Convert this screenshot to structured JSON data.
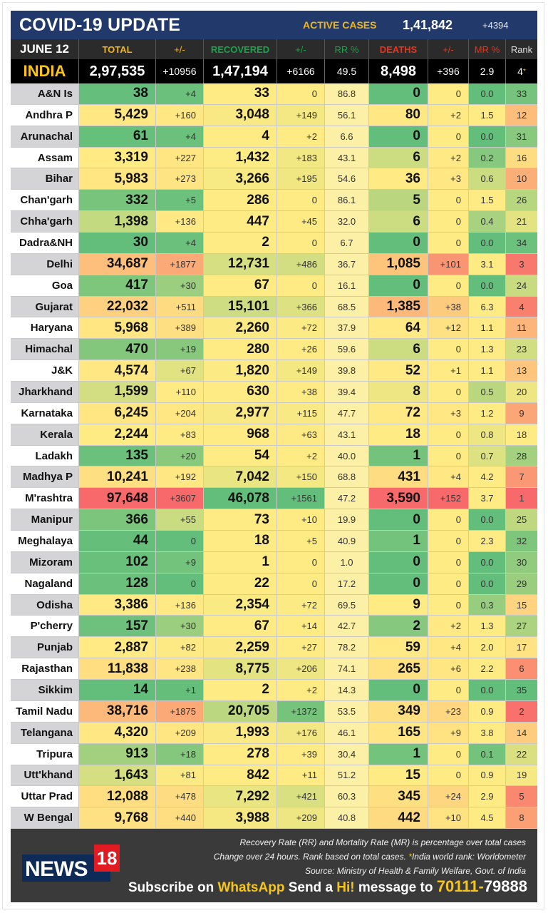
{
  "header": {
    "title": "COVID-19 UPDATE",
    "active_cases_label": "ACTIVE CASES",
    "active_cases": "1,41,842",
    "active_delta": "+4394"
  },
  "columns": {
    "date": "JUNE 12",
    "total": "TOTAL",
    "total_delta": "+/-",
    "recovered": "RECOVERED",
    "rec_delta": "+/-",
    "rr": "RR %",
    "deaths": "DEATHS",
    "d_delta": "+/-",
    "mr": "MR %",
    "rank": "Rank"
  },
  "column_colors": {
    "total": "#f2b51d",
    "recovered": "#1aa34a",
    "deaths": "#e8341c",
    "rank": "#e0e0e0"
  },
  "india": {
    "name": "INDIA",
    "total": "2,97,535",
    "total_delta": "+10956",
    "recovered": "1,47,194",
    "rec_delta": "+6166",
    "rr": "49.5",
    "deaths": "8,498",
    "d_delta": "+396",
    "mr": "2.9",
    "rank": "4",
    "rank_mark": "*"
  },
  "scale_colors": {
    "green": "#63be7b",
    "yellow": "#ffeb84",
    "red": "#f8696b",
    "pale": "#fcefa6"
  },
  "rows": [
    [
      "A&N Is",
      "38",
      "+4",
      "33",
      "0",
      "86.8",
      "0",
      "0",
      "0.0",
      "33"
    ],
    [
      "Andhra P",
      "5,429",
      "+160",
      "3,048",
      "+149",
      "56.1",
      "80",
      "+2",
      "1.5",
      "12"
    ],
    [
      "Arunachal",
      "61",
      "+4",
      "4",
      "+2",
      "6.6",
      "0",
      "0",
      "0.0",
      "31"
    ],
    [
      "Assam",
      "3,319",
      "+227",
      "1,432",
      "+183",
      "43.1",
      "6",
      "+2",
      "0.2",
      "16"
    ],
    [
      "Bihar",
      "5,983",
      "+273",
      "3,266",
      "+195",
      "54.6",
      "36",
      "+3",
      "0.6",
      "10"
    ],
    [
      "Chan'garh",
      "332",
      "+5",
      "286",
      "0",
      "86.1",
      "5",
      "0",
      "1.5",
      "26"
    ],
    [
      "Chha'garh",
      "1,398",
      "+136",
      "447",
      "+45",
      "32.0",
      "6",
      "0",
      "0.4",
      "21"
    ],
    [
      "Dadra&NH",
      "30",
      "+4",
      "2",
      "0",
      "6.7",
      "0",
      "0",
      "0.0",
      "34"
    ],
    [
      "Delhi",
      "34,687",
      "+1877",
      "12,731",
      "+486",
      "36.7",
      "1,085",
      "+101",
      "3.1",
      "3"
    ],
    [
      "Goa",
      "417",
      "+30",
      "67",
      "0",
      "16.1",
      "0",
      "0",
      "0.0",
      "24"
    ],
    [
      "Gujarat",
      "22,032",
      "+511",
      "15,101",
      "+366",
      "68.5",
      "1,385",
      "+38",
      "6.3",
      "4"
    ],
    [
      "Haryana",
      "5,968",
      "+389",
      "2,260",
      "+72",
      "37.9",
      "64",
      "+12",
      "1.1",
      "11"
    ],
    [
      "Himachal",
      "470",
      "+19",
      "280",
      "+26",
      "59.6",
      "6",
      "0",
      "1.3",
      "23"
    ],
    [
      "J&K",
      "4,574",
      "+67",
      "1,820",
      "+149",
      "39.8",
      "52",
      "+1",
      "1.1",
      "13"
    ],
    [
      "Jharkhand",
      "1,599",
      "+110",
      "630",
      "+38",
      "39.4",
      "8",
      "0",
      "0.5",
      "20"
    ],
    [
      "Karnataka",
      "6,245",
      "+204",
      "2,977",
      "+115",
      "47.7",
      "72",
      "+3",
      "1.2",
      "9"
    ],
    [
      "Kerala",
      "2,244",
      "+83",
      "968",
      "+63",
      "43.1",
      "18",
      "0",
      "0.8",
      "18"
    ],
    [
      "Ladakh",
      "135",
      "+20",
      "54",
      "+2",
      "40.0",
      "1",
      "0",
      "0.7",
      "28"
    ],
    [
      "Madhya P",
      "10,241",
      "+192",
      "7,042",
      "+150",
      "68.8",
      "431",
      "+4",
      "4.2",
      "7"
    ],
    [
      "M'rashtra",
      "97,648",
      "+3607",
      "46,078",
      "+1561",
      "47.2",
      "3,590",
      "+152",
      "3.7",
      "1"
    ],
    [
      "Manipur",
      "366",
      "+55",
      "73",
      "+10",
      "19.9",
      "0",
      "0",
      "0.0",
      "25"
    ],
    [
      "Meghalaya",
      "44",
      "0",
      "18",
      "+5",
      "40.9",
      "1",
      "0",
      "2.3",
      "32"
    ],
    [
      "Mizoram",
      "102",
      "+9",
      "1",
      "0",
      "1.0",
      "0",
      "0",
      "0.0",
      "30"
    ],
    [
      "Nagaland",
      "128",
      "0",
      "22",
      "0",
      "17.2",
      "0",
      "0",
      "0.0",
      "29"
    ],
    [
      "Odisha",
      "3,386",
      "+136",
      "2,354",
      "+72",
      "69.5",
      "9",
      "0",
      "0.3",
      "15"
    ],
    [
      "P'cherry",
      "157",
      "+30",
      "67",
      "+14",
      "42.7",
      "2",
      "+2",
      "1.3",
      "27"
    ],
    [
      "Punjab",
      "2,887",
      "+82",
      "2,259",
      "+27",
      "78.2",
      "59",
      "+4",
      "2.0",
      "17"
    ],
    [
      "Rajasthan",
      "11,838",
      "+238",
      "8,775",
      "+206",
      "74.1",
      "265",
      "+6",
      "2.2",
      "6"
    ],
    [
      "Sikkim",
      "14",
      "+1",
      "2",
      "+2",
      "14.3",
      "0",
      "0",
      "0.0",
      "35"
    ],
    [
      "Tamil Nadu",
      "38,716",
      "+1875",
      "20,705",
      "+1372",
      "53.5",
      "349",
      "+23",
      "0.9",
      "2"
    ],
    [
      "Telangana",
      "4,320",
      "+209",
      "1,993",
      "+176",
      "46.1",
      "165",
      "+9",
      "3.8",
      "14"
    ],
    [
      "Tripura",
      "913",
      "+18",
      "278",
      "+39",
      "30.4",
      "1",
      "0",
      "0.1",
      "22"
    ],
    [
      "Utt'khand",
      "1,643",
      "+81",
      "842",
      "+11",
      "51.2",
      "15",
      "0",
      "0.9",
      "19"
    ],
    [
      "Uttar Prad",
      "12,088",
      "+478",
      "7,292",
      "+421",
      "60.3",
      "345",
      "+24",
      "2.9",
      "5"
    ],
    [
      "W Bengal",
      "9,768",
      "+440",
      "3,988",
      "+209",
      "40.8",
      "442",
      "+10",
      "4.5",
      "8"
    ]
  ],
  "footer": {
    "note1": "Recovery Rate (RR) and Mortality Rate (MR) is percentage over total cases",
    "note2a": "Change over 24 hours. Rank based on total cases. ",
    "note2_star": "*",
    "note2b": "India world rank: Worldometer",
    "note3": "Source: Ministry of Health & Family Welfare, Govt. of India",
    "sub1": "Subscribe on ",
    "sub2": "WhatsApp",
    "sub3": " Send a ",
    "sub4": "Hi!",
    "sub5": " message to ",
    "phone_a": "70111-",
    "phone_b": "79888",
    "logo_text": "NEWS",
    "logo_num": "18"
  }
}
